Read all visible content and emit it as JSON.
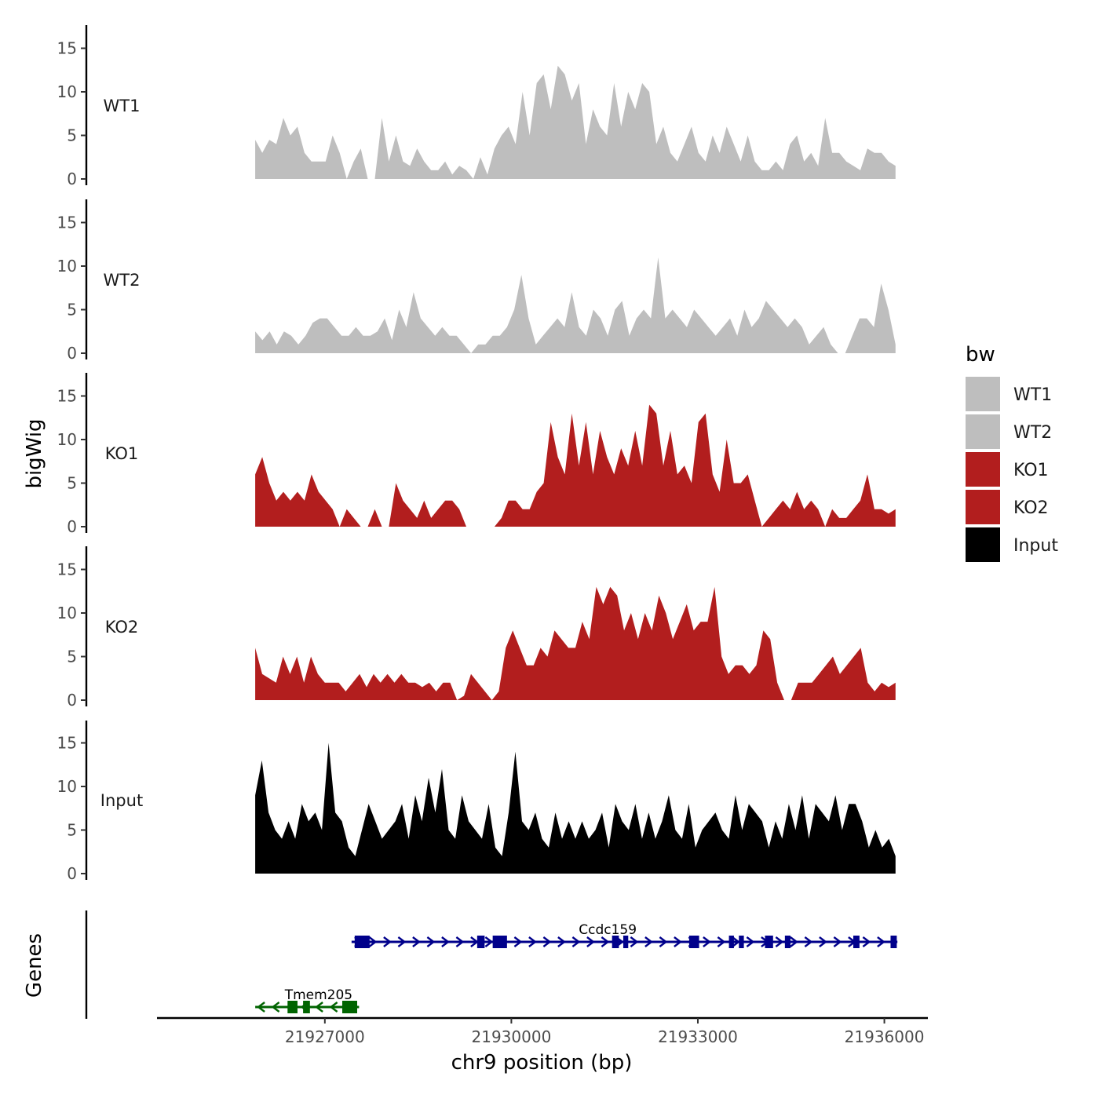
{
  "chart_data": {
    "type": "area",
    "ylabel": "bigWig",
    "xlabel": "chr9 position (bp)",
    "genes_label": "Genes",
    "xlim": [
      21924300,
      21936700
    ],
    "ylim": [
      0,
      17
    ],
    "y_ticks": [
      0,
      5,
      10,
      15
    ],
    "x_ticks": [
      21927000,
      21930000,
      21933000,
      21936000
    ],
    "x_tick_labels": [
      "21927000",
      "21930000",
      "21933000",
      "21936000"
    ],
    "legend": {
      "title": "bw",
      "entries": [
        {
          "label": "WT1",
          "color": "#bebebe"
        },
        {
          "label": "WT2",
          "color": "#bebebe"
        },
        {
          "label": "KO1",
          "color": "#b21e1e"
        },
        {
          "label": "KO2",
          "color": "#b21e1e"
        },
        {
          "label": "Input",
          "color": "#000000"
        }
      ]
    },
    "series": [
      {
        "name": "WT1",
        "color": "#bebebe",
        "x_start": 21925880,
        "x_end": 21936180,
        "values": [
          4.5,
          3,
          4.5,
          4,
          7,
          5,
          6,
          3,
          2,
          2,
          2,
          5,
          3,
          0,
          2,
          3.5,
          0,
          0,
          7,
          2,
          5,
          2,
          1.5,
          3.5,
          2,
          1,
          1,
          2,
          0.5,
          1.5,
          1,
          0,
          2.5,
          0.5,
          3.5,
          5,
          6,
          4,
          10,
          5,
          11,
          12,
          8,
          13,
          12,
          9,
          11,
          4,
          8,
          6,
          5,
          11,
          6,
          10,
          8,
          11,
          10,
          4,
          6,
          3,
          2,
          4,
          6,
          3,
          2,
          5,
          3,
          6,
          4,
          2,
          5,
          2,
          1,
          1,
          2,
          1,
          4,
          5,
          2,
          3,
          1.5,
          7,
          3,
          3,
          2,
          1.5,
          1,
          3.5,
          3,
          3,
          2,
          1.5
        ]
      },
      {
        "name": "WT2",
        "color": "#bebebe",
        "x_start": 21925880,
        "x_end": 21936180,
        "values": [
          2.5,
          1.5,
          2.5,
          1,
          2.5,
          2,
          1,
          2,
          3.5,
          4,
          4,
          3,
          2,
          2,
          3,
          2,
          2,
          2.5,
          4,
          1.5,
          5,
          3,
          7,
          4,
          3,
          2,
          3,
          2,
          2,
          1,
          0,
          1,
          1,
          2,
          2,
          3,
          5,
          9,
          4,
          1,
          2,
          3,
          4,
          3,
          7,
          3,
          2,
          5,
          4,
          2,
          5,
          6,
          2,
          4,
          5,
          4,
          11,
          4,
          5,
          4,
          3,
          5,
          4,
          3,
          2,
          3,
          4,
          2,
          5,
          3,
          4,
          6,
          5,
          4,
          3,
          4,
          3,
          1,
          2,
          3,
          1,
          0,
          0,
          2,
          4,
          4,
          3,
          8,
          5,
          1
        ]
      },
      {
        "name": "KO1",
        "color": "#b21e1e",
        "x_start": 21925880,
        "x_end": 21936180,
        "values": [
          6,
          8,
          5,
          3,
          4,
          3,
          4,
          3,
          6,
          4,
          3,
          2,
          0,
          2,
          1,
          0,
          0,
          2,
          0,
          0,
          5,
          3,
          2,
          1,
          3,
          1,
          2,
          3,
          3,
          2,
          0,
          0,
          0,
          0,
          0,
          1,
          3,
          3,
          2,
          2,
          4,
          5,
          12,
          8,
          6,
          13,
          7,
          12,
          6,
          11,
          8,
          6,
          9,
          7,
          11,
          7,
          14,
          13,
          7,
          11,
          6,
          7,
          5,
          12,
          13,
          6,
          4,
          10,
          5,
          5,
          6,
          3,
          0,
          1,
          2,
          3,
          2,
          4,
          2,
          3,
          2,
          0,
          2,
          1,
          1,
          2,
          3,
          6,
          2,
          2,
          1.5,
          2
        ]
      },
      {
        "name": "KO2",
        "color": "#b21e1e",
        "x_start": 21925880,
        "x_end": 21936180,
        "values": [
          6,
          3,
          2.5,
          2,
          5,
          3,
          5,
          2,
          5,
          3,
          2,
          2,
          2,
          1,
          2,
          3,
          1.5,
          3,
          2,
          3,
          2,
          3,
          2,
          2,
          1.5,
          2,
          1,
          2,
          2,
          0,
          0.5,
          3,
          2,
          1,
          0,
          1,
          6,
          8,
          6,
          4,
          4,
          6,
          5,
          8,
          7,
          6,
          6,
          9,
          7,
          13,
          11,
          13,
          12,
          8,
          10,
          7,
          10,
          8,
          12,
          10,
          7,
          9,
          11,
          8,
          9,
          9,
          13,
          5,
          3,
          4,
          4,
          3,
          4,
          8,
          7,
          2,
          0,
          0,
          2,
          2,
          2,
          3,
          4,
          5,
          3,
          4,
          5,
          6,
          2,
          1,
          2,
          1.5,
          2
        ]
      },
      {
        "name": "Input",
        "color": "#000000",
        "x_start": 21925880,
        "x_end": 21936180,
        "values": [
          9,
          13,
          7,
          5,
          4,
          6,
          4,
          8,
          6,
          7,
          5,
          15,
          7,
          6,
          3,
          2,
          5,
          8,
          6,
          4,
          5,
          6,
          8,
          4,
          9,
          6,
          11,
          7,
          12,
          5,
          4,
          9,
          6,
          5,
          4,
          8,
          3,
          2,
          7,
          14,
          6,
          5,
          7,
          4,
          3,
          7,
          4,
          6,
          4,
          6,
          4,
          5,
          7,
          3,
          8,
          6,
          5,
          8,
          4,
          7,
          4,
          6,
          9,
          5,
          4,
          8,
          3,
          5,
          6,
          7,
          5,
          4,
          9,
          5,
          8,
          7,
          6,
          3,
          6,
          4,
          8,
          5,
          9,
          4,
          8,
          7,
          6,
          9,
          5,
          8,
          8,
          6,
          3,
          5,
          3,
          4,
          2
        ]
      }
    ],
    "genes": [
      {
        "name": "Tmem205",
        "color": "#006400",
        "strand": "-",
        "start": 21925880,
        "end": 21927550,
        "exons": [
          [
            21926400,
            21926560
          ],
          [
            21926650,
            21926760
          ],
          [
            21927280,
            21927520
          ]
        ]
      },
      {
        "name": "Ccdc159",
        "color": "#00008b",
        "strand": "+",
        "start": 21927430,
        "end": 21936210,
        "exons": [
          [
            21927480,
            21927720
          ],
          [
            21929450,
            21929570
          ],
          [
            21929700,
            21929930
          ],
          [
            21931620,
            21931730
          ],
          [
            21931800,
            21931880
          ],
          [
            21932860,
            21933020
          ],
          [
            21933500,
            21933580
          ],
          [
            21933660,
            21933740
          ],
          [
            21934080,
            21934210
          ],
          [
            21934400,
            21934490
          ],
          [
            21935500,
            21935600
          ],
          [
            21936100,
            21936200
          ]
        ]
      }
    ]
  }
}
